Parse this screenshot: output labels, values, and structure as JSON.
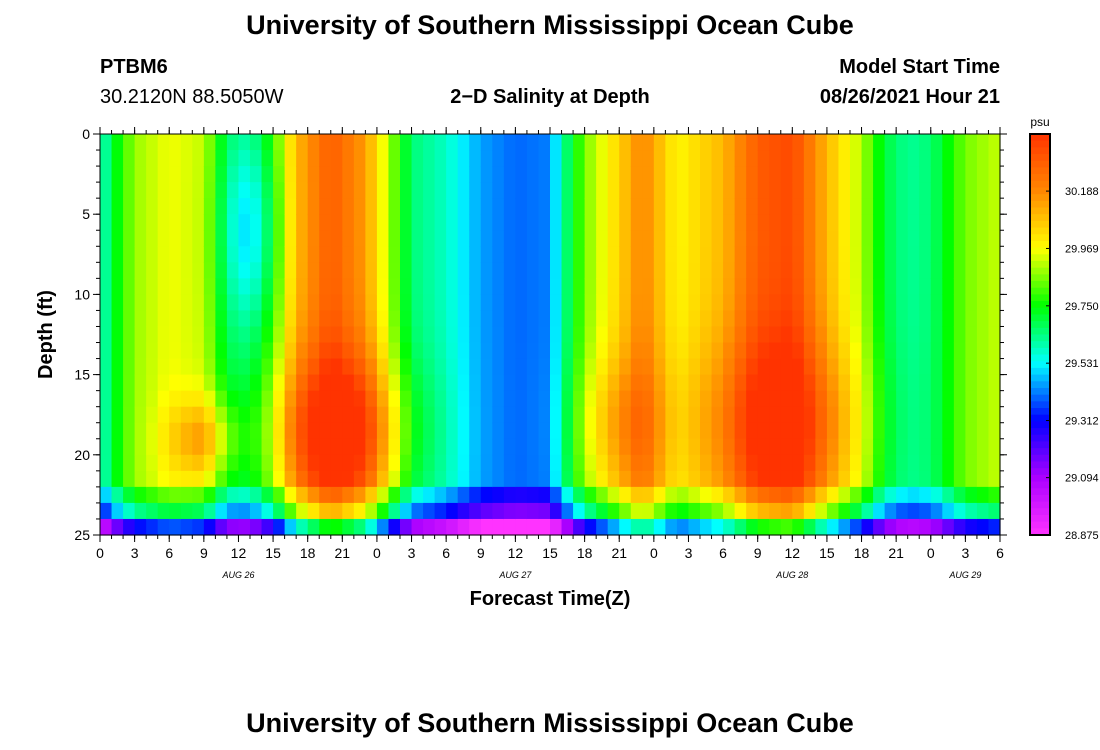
{
  "page": {
    "title_top": "University of Southern Mississippi Ocean Cube",
    "title_bottom": "University of Southern Mississippi Ocean Cube",
    "station": "PTBM6",
    "coords": "30.2120N  88.5050W",
    "subtitle": "2−D Salinity at Depth",
    "model_start_label": "Model Start Time",
    "model_start_value": "08/26/2021 Hour 21"
  },
  "chart_data": {
    "type": "heatmap",
    "xlabel": "Forecast Time(Z)",
    "ylabel": "Depth (ft)",
    "x_unit": "hours from 08/26 00Z",
    "xlim": [
      0,
      78
    ],
    "ylim": [
      0,
      25
    ],
    "y_ticks": [
      "0",
      "5",
      "10",
      "15",
      "20",
      "25"
    ],
    "x_ticks": [
      "0",
      "3",
      "6",
      "9",
      "12",
      "15",
      "18",
      "21",
      "0",
      "3",
      "6",
      "9",
      "12",
      "15",
      "18",
      "21",
      "0",
      "3",
      "6",
      "9",
      "12",
      "15",
      "18",
      "21",
      "0",
      "3",
      "6"
    ],
    "date_labels": [
      {
        "label": "AUG 26",
        "hour": 12
      },
      {
        "label": "AUG 27",
        "hour": 36
      },
      {
        "label": "AUG 28",
        "hour": 60
      },
      {
        "label": "AUG 29",
        "hour": 75
      }
    ],
    "colorbar": {
      "unit": "psu",
      "range": [
        28.875,
        30.406
      ],
      "tick_values": [
        "30.188",
        "29.969",
        "29.750",
        "29.531",
        "29.312",
        "29.094",
        "28.875"
      ],
      "colors": [
        "#ff33ff",
        "#aa00ff",
        "#0000ff",
        "#00ffff",
        "#00ff00",
        "#ffff00",
        "#ff8800",
        "#ff3300"
      ]
    },
    "surface_profile": [
      {
        "hour": 0,
        "value": 29.55
      },
      {
        "hour": 1,
        "value": 29.7
      },
      {
        "hour": 3,
        "value": 29.88
      },
      {
        "hour": 6,
        "value": 29.96
      },
      {
        "hour": 9,
        "value": 29.92
      },
      {
        "hour": 11,
        "value": 29.7
      },
      {
        "hour": 13,
        "value": 29.68
      },
      {
        "hour": 15,
        "value": 29.82
      },
      {
        "hour": 17,
        "value": 30.1
      },
      {
        "hour": 20,
        "value": 30.3
      },
      {
        "hour": 23,
        "value": 30.15
      },
      {
        "hour": 25,
        "value": 29.9
      },
      {
        "hour": 27,
        "value": 29.65
      },
      {
        "hour": 30,
        "value": 29.58
      },
      {
        "hour": 33,
        "value": 29.45
      },
      {
        "hour": 36,
        "value": 29.4
      },
      {
        "hour": 39,
        "value": 29.42
      },
      {
        "hour": 40,
        "value": 29.6
      },
      {
        "hour": 42,
        "value": 29.85
      },
      {
        "hour": 45,
        "value": 30.05
      },
      {
        "hour": 47,
        "value": 30.2
      },
      {
        "hour": 50,
        "value": 29.98
      },
      {
        "hour": 54,
        "value": 30.1
      },
      {
        "hour": 57,
        "value": 30.3
      },
      {
        "hour": 60,
        "value": 30.35
      },
      {
        "hour": 63,
        "value": 30.1
      },
      {
        "hour": 66,
        "value": 29.9
      },
      {
        "hour": 68,
        "value": 29.7
      },
      {
        "hour": 70,
        "value": 29.62
      },
      {
        "hour": 72,
        "value": 29.65
      },
      {
        "hour": 75,
        "value": 29.85
      },
      {
        "hour": 78,
        "value": 29.92
      }
    ]
  }
}
